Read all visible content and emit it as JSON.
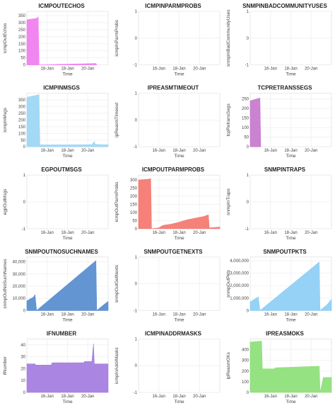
{
  "chart_data": [
    {
      "type": "area",
      "title": "ICMPOUTECHOS",
      "ylabel": "icmpOutEchos",
      "xlabel": "Time",
      "x_ticks": [
        "16-Jan",
        "18-Jan",
        "20-Jan"
      ],
      "y_ticks": [
        "0",
        "50",
        "100",
        "150",
        "200",
        "250",
        "300",
        "350"
      ],
      "ylim": [
        0,
        380
      ],
      "color": "#f07ff0",
      "series": [
        {
          "points": [
            [
              0.0,
              320
            ],
            [
              0.12,
              330
            ],
            [
              0.14,
              340
            ],
            [
              0.15,
              0
            ],
            [
              0.5,
              5
            ],
            [
              0.7,
              8
            ],
            [
              0.85,
              10
            ],
            [
              0.86,
              0
            ]
          ]
        }
      ]
    },
    {
      "type": "area",
      "title": "ICMPINPARMPROBS",
      "ylabel": "icmpInParmProbs",
      "xlabel": "Time",
      "x_ticks": [
        "16-Jan",
        "18-Jan",
        "20-Jan"
      ],
      "y_ticks": [
        "-1",
        "0",
        "1"
      ],
      "ylim": [
        -1,
        1
      ],
      "color": "#cccccc",
      "series": []
    },
    {
      "type": "area",
      "title": "SNMPINBADCOMMUNITYUSES",
      "ylabel": "snmpInBadCommunityUses",
      "xlabel": "Time",
      "x_ticks": [
        "16-Jan",
        "18-Jan",
        "20-Jan"
      ],
      "y_ticks": [
        "-1",
        "0",
        "1"
      ],
      "ylim": [
        -1,
        1
      ],
      "color": "#cccccc",
      "series": []
    },
    {
      "type": "area",
      "title": "ICMPINMSGS",
      "ylabel": "icmpInMsgs",
      "xlabel": "Time",
      "x_ticks": [
        "16-Jan",
        "18-Jan",
        "20-Jan"
      ],
      "y_ticks": [
        "0",
        "50",
        "100",
        "150",
        "200",
        "250",
        "300",
        "350"
      ],
      "ylim": [
        0,
        400
      ],
      "color": "#9fd7f5",
      "series": [
        {
          "points": [
            [
              0.0,
              370
            ],
            [
              0.12,
              385
            ],
            [
              0.15,
              390
            ],
            [
              0.16,
              15
            ],
            [
              0.5,
              15
            ],
            [
              0.8,
              16
            ],
            [
              0.83,
              40
            ],
            [
              0.84,
              18
            ],
            [
              1.0,
              15
            ]
          ]
        }
      ]
    },
    {
      "type": "area",
      "title": "IPREASMTIMEOUT",
      "ylabel": "ipReasmTimeout",
      "xlabel": "Time",
      "x_ticks": [
        "16-Jan",
        "18-Jan",
        "20-Jan"
      ],
      "y_ticks": [
        "-1",
        "0",
        "1"
      ],
      "ylim": [
        -1,
        1
      ],
      "color": "#cccccc",
      "series": []
    },
    {
      "type": "area",
      "title": "TCPRETRANSSEGS",
      "ylabel": "tcpRetransSegs",
      "xlabel": "Time",
      "x_ticks": [
        "16-Jan",
        "18-Jan",
        "20-Jan"
      ],
      "y_ticks": [
        "0",
        "50",
        "100",
        "150",
        "200",
        "250"
      ],
      "ylim": [
        0,
        280
      ],
      "color": "#c77bcf",
      "series": [
        {
          "points": [
            [
              0.0,
              240
            ],
            [
              0.12,
              255
            ],
            [
              0.13,
              0
            ]
          ]
        }
      ]
    },
    {
      "type": "area",
      "title": "EGPOUTMSGS",
      "ylabel": "egpOutMsgs",
      "xlabel": "Time",
      "x_ticks": [
        "16-Jan",
        "18-Jan",
        "20-Jan"
      ],
      "y_ticks": [
        "-1",
        "0",
        "1"
      ],
      "ylim": [
        -1,
        1
      ],
      "color": "#cccccc",
      "series": []
    },
    {
      "type": "area",
      "title": "ICMPOUTPARMPROBS",
      "ylabel": "icmpOutParmProbs",
      "xlabel": "Time",
      "x_ticks": [
        "16-Jan",
        "18-Jan",
        "20-Jan"
      ],
      "y_ticks": [
        "0",
        "50",
        "100",
        "150",
        "200",
        "250",
        "300"
      ],
      "ylim": [
        0,
        330
      ],
      "color": "#f47a72",
      "series": [
        {
          "points": [
            [
              0.0,
              300
            ],
            [
              0.12,
              305
            ],
            [
              0.15,
              308
            ],
            [
              0.16,
              0
            ],
            [
              0.25,
              5
            ],
            [
              0.3,
              20
            ],
            [
              0.4,
              28
            ],
            [
              0.5,
              40
            ],
            [
              0.6,
              55
            ],
            [
              0.7,
              65
            ],
            [
              0.8,
              75
            ],
            [
              0.86,
              85
            ],
            [
              0.87,
              5
            ],
            [
              1.0,
              10
            ]
          ]
        }
      ]
    },
    {
      "type": "area",
      "title": "SNMPINTRAPS",
      "ylabel": "snmpInTraps",
      "xlabel": "Time",
      "x_ticks": [
        "16-Jan",
        "18-Jan",
        "20-Jan"
      ],
      "y_ticks": [
        "-1",
        "0",
        "1"
      ],
      "ylim": [
        -1,
        1
      ],
      "color": "#cccccc",
      "series": []
    },
    {
      "type": "area",
      "title": "SNMPOUTNOSUCHNAMES",
      "ylabel": "snmpOutNoSuchNames",
      "xlabel": "Time",
      "x_ticks": [
        "16-Jan",
        "18-Jan",
        "20-Jan"
      ],
      "y_ticks": [
        "0",
        "10,000",
        "20,000",
        "30,000",
        "40,000"
      ],
      "ylim": [
        0,
        44000
      ],
      "color": "#5b8fd1",
      "series": [
        {
          "points": [
            [
              0.0,
              8000
            ],
            [
              0.08,
              11000
            ],
            [
              0.1,
              13000
            ],
            [
              0.12,
              0
            ],
            [
              0.85,
              41000
            ],
            [
              0.86,
              0
            ],
            [
              0.95,
              5000
            ],
            [
              1.0,
              7500
            ]
          ]
        }
      ]
    },
    {
      "type": "area",
      "title": "SNMPOUTGETNEXTS",
      "ylabel": "snmpOutGetNexts",
      "xlabel": "Time",
      "x_ticks": [
        "16-Jan",
        "18-Jan",
        "20-Jan"
      ],
      "y_ticks": [
        "-1",
        "0",
        "1"
      ],
      "ylim": [
        -1,
        1
      ],
      "color": "#cccccc",
      "series": []
    },
    {
      "type": "area",
      "title": "SNMPOUTPKTS",
      "ylabel": "snmpOutPkts",
      "xlabel": "Time",
      "x_ticks": [
        "16-Jan",
        "18-Jan",
        "20-Jan"
      ],
      "y_ticks": [
        "0",
        "1,000,000",
        "2,000,000",
        "3,000,000",
        "4,000,000"
      ],
      "ylim": [
        0,
        4300000
      ],
      "color": "#8fd0f5",
      "series": [
        {
          "points": [
            [
              0.0,
              700000
            ],
            [
              0.1,
              1100000
            ],
            [
              0.12,
              0
            ],
            [
              0.85,
              3900000
            ],
            [
              0.86,
              0
            ],
            [
              0.95,
              500000
            ],
            [
              1.0,
              900000
            ]
          ]
        }
      ]
    },
    {
      "type": "area",
      "title": "IFNUMBER",
      "ylabel": "ifNumber",
      "xlabel": "Time",
      "x_ticks": [
        "16-Jan",
        "18-Jan",
        "20-Jan"
      ],
      "y_ticks": [
        "0",
        "10",
        "20",
        "30",
        "40"
      ],
      "ylim": [
        0,
        45
      ],
      "color": "#a57fe0",
      "series": [
        {
          "points": [
            [
              0.0,
              24
            ],
            [
              0.1,
              24
            ],
            [
              0.11,
              23
            ],
            [
              0.3,
              23
            ],
            [
              0.31,
              25
            ],
            [
              0.7,
              25
            ],
            [
              0.71,
              26
            ],
            [
              0.8,
              26
            ],
            [
              0.82,
              41
            ],
            [
              0.83,
              24
            ],
            [
              1.0,
              24
            ]
          ]
        }
      ]
    },
    {
      "type": "area",
      "title": "ICMPINADDRMASKS",
      "ylabel": "icmpInAddrMasks",
      "xlabel": "Time",
      "x_ticks": [
        "16-Jan",
        "18-Jan",
        "20-Jan"
      ],
      "y_ticks": [
        "-1",
        "0",
        "1"
      ],
      "ylim": [
        -1,
        1
      ],
      "color": "#cccccc",
      "series": []
    },
    {
      "type": "area",
      "title": "IPREASMOKS",
      "ylabel": "ipReasmOKs",
      "xlabel": "Time",
      "x_ticks": [
        "16-Jan",
        "18-Jan",
        "20-Jan"
      ],
      "y_ticks": [
        "0",
        "100",
        "200",
        "300",
        "400"
      ],
      "ylim": [
        0,
        500
      ],
      "color": "#8ee07a",
      "series": [
        {
          "points": [
            [
              0.0,
              470
            ],
            [
              0.14,
              480
            ],
            [
              0.15,
              220
            ],
            [
              0.3,
              220
            ],
            [
              0.31,
              230
            ],
            [
              0.85,
              245
            ],
            [
              0.86,
              0
            ],
            [
              0.9,
              140
            ],
            [
              1.0,
              140
            ]
          ]
        }
      ]
    }
  ]
}
